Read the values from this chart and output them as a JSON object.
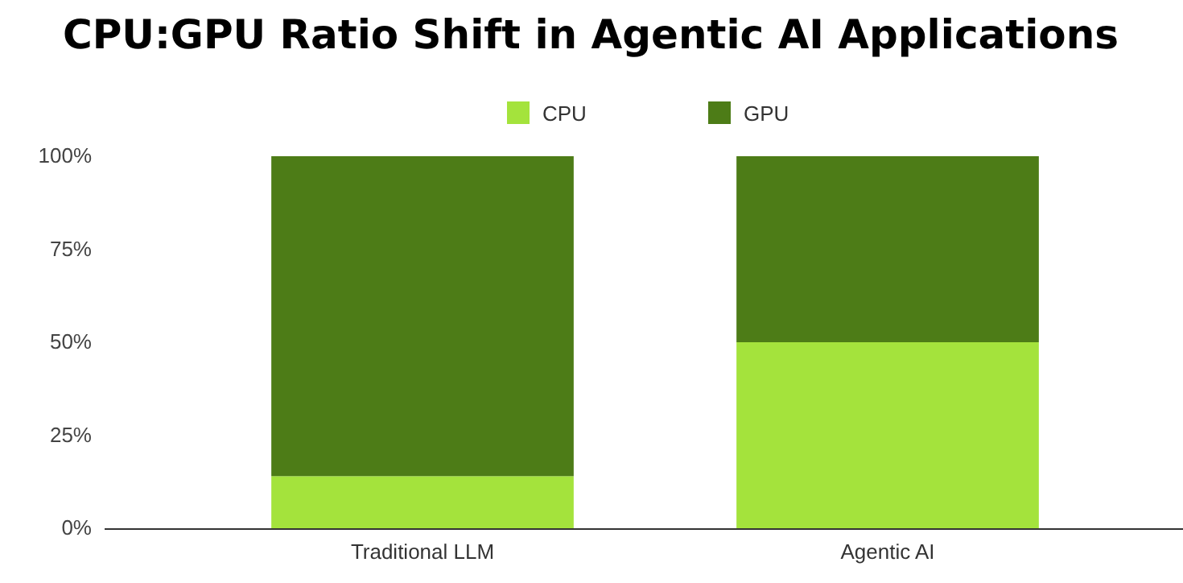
{
  "chart_data": {
    "type": "bar",
    "title": "CPU:GPU Ratio Shift in Agentic AI Applications",
    "categories": [
      "Traditional LLM",
      "Agentic AI"
    ],
    "stacked": true,
    "series": [
      {
        "name": "CPU",
        "color": "#a4e33c",
        "values": [
          14,
          50
        ]
      },
      {
        "name": "GPU",
        "color": "#4d7c17",
        "values": [
          86,
          50
        ]
      }
    ],
    "ylim": [
      0,
      100
    ],
    "yticks": [
      {
        "value": 0,
        "label": "0%"
      },
      {
        "value": 25,
        "label": "25%"
      },
      {
        "value": 50,
        "label": "50%"
      },
      {
        "value": 75,
        "label": "75%"
      },
      {
        "value": 100,
        "label": "100%"
      }
    ],
    "legend": "top"
  }
}
